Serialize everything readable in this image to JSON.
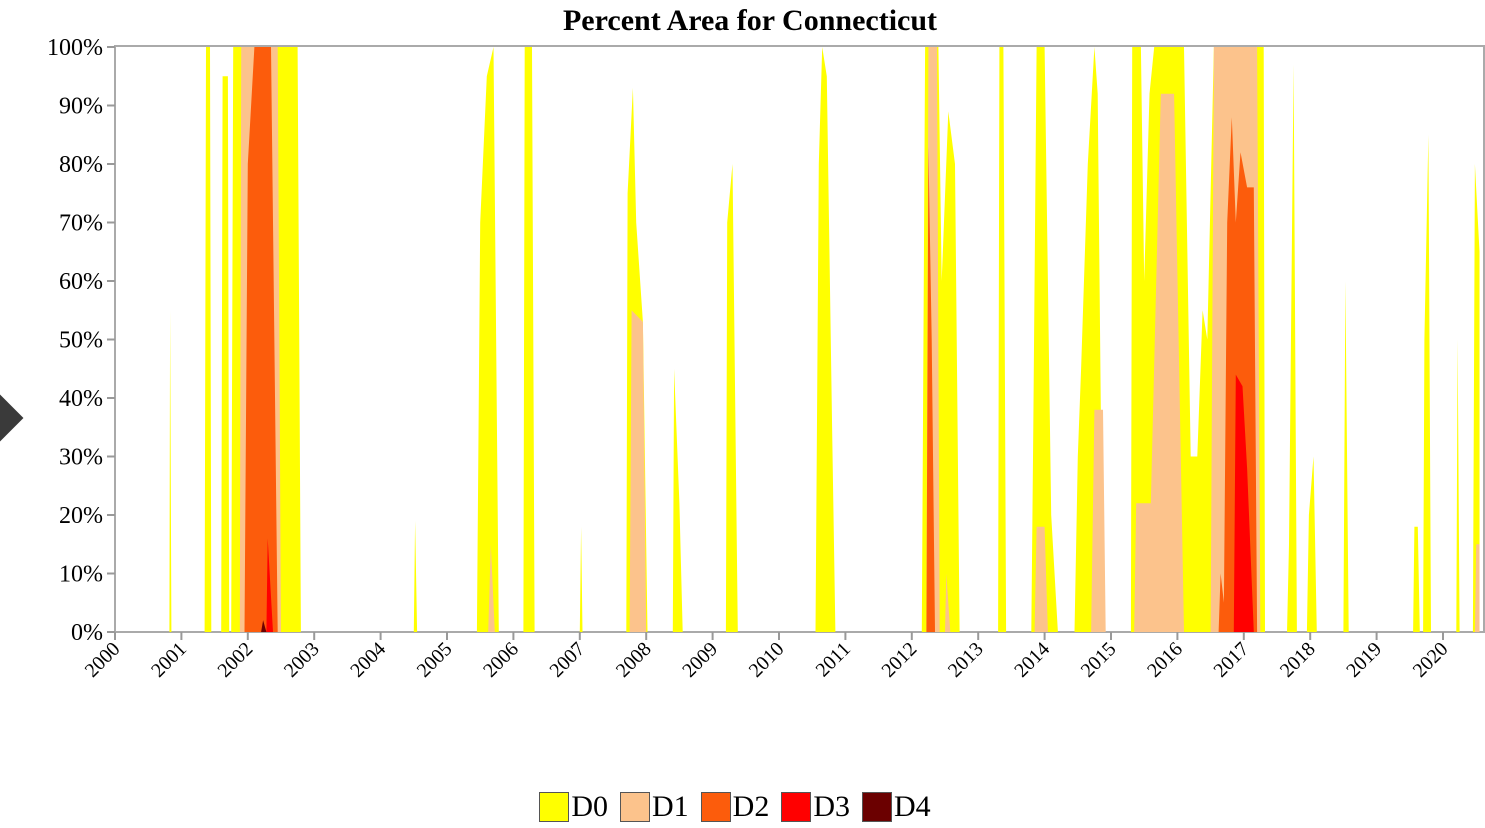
{
  "chart_data": {
    "type": "area",
    "title": "Percent Area for Connecticut",
    "xlabel": "",
    "ylabel": "",
    "x_start_year": 2000,
    "x_end_year": 2020.55,
    "ylim": [
      0,
      100
    ],
    "y_ticks": [
      "0%",
      "10%",
      "20%",
      "30%",
      "40%",
      "50%",
      "60%",
      "70%",
      "80%",
      "90%",
      "100%"
    ],
    "x_ticks": [
      "2000",
      "2001",
      "2002",
      "2003",
      "2004",
      "2005",
      "2006",
      "2007",
      "2008",
      "2009",
      "2010",
      "2011",
      "2012",
      "2013",
      "2014",
      "2015",
      "2016",
      "2017",
      "2018",
      "2019",
      "2020"
    ],
    "grid": false,
    "legend_position": "bottom-center",
    "series": [
      {
        "name": "D0",
        "color": "#ffff00",
        "points": [
          [
            2000.82,
            0
          ],
          [
            2000.83,
            55
          ],
          [
            2000.85,
            0
          ],
          [
            2001.35,
            0
          ],
          [
            2001.37,
            100
          ],
          [
            2001.43,
            100
          ],
          [
            2001.45,
            0
          ],
          [
            2001.6,
            0
          ],
          [
            2001.62,
            95
          ],
          [
            2001.7,
            95
          ],
          [
            2001.72,
            0
          ],
          [
            2001.75,
            0
          ],
          [
            2001.78,
            100
          ],
          [
            2002.75,
            100
          ],
          [
            2002.8,
            0
          ],
          [
            2004.5,
            0
          ],
          [
            2004.52,
            19
          ],
          [
            2004.55,
            0
          ],
          [
            2005.45,
            0
          ],
          [
            2005.5,
            70
          ],
          [
            2005.6,
            95
          ],
          [
            2005.7,
            100
          ],
          [
            2005.78,
            0
          ],
          [
            2006.15,
            0
          ],
          [
            2006.17,
            100
          ],
          [
            2006.28,
            100
          ],
          [
            2006.32,
            0
          ],
          [
            2007.0,
            0
          ],
          [
            2007.02,
            18
          ],
          [
            2007.04,
            0
          ],
          [
            2007.7,
            0
          ],
          [
            2007.72,
            75
          ],
          [
            2007.8,
            93
          ],
          [
            2007.85,
            70
          ],
          [
            2007.95,
            53
          ],
          [
            2008.02,
            0
          ],
          [
            2008.4,
            0
          ],
          [
            2008.42,
            45
          ],
          [
            2008.5,
            22
          ],
          [
            2008.55,
            0
          ],
          [
            2009.2,
            0
          ],
          [
            2009.22,
            70
          ],
          [
            2009.3,
            80
          ],
          [
            2009.38,
            0
          ],
          [
            2010.55,
            0
          ],
          [
            2010.6,
            80
          ],
          [
            2010.65,
            100
          ],
          [
            2010.72,
            95
          ],
          [
            2010.8,
            35
          ],
          [
            2010.85,
            0
          ],
          [
            2012.15,
            0
          ],
          [
            2012.2,
            100
          ],
          [
            2012.4,
            100
          ],
          [
            2012.45,
            60
          ],
          [
            2012.55,
            89
          ],
          [
            2012.65,
            80
          ],
          [
            2012.72,
            0
          ],
          [
            2013.3,
            0
          ],
          [
            2013.32,
            100
          ],
          [
            2013.38,
            100
          ],
          [
            2013.42,
            0
          ],
          [
            2013.8,
            0
          ],
          [
            2013.83,
            35
          ],
          [
            2013.88,
            100
          ],
          [
            2014.0,
            100
          ],
          [
            2014.05,
            60
          ],
          [
            2014.1,
            20
          ],
          [
            2014.2,
            0
          ],
          [
            2014.45,
            0
          ],
          [
            2014.5,
            30
          ],
          [
            2014.55,
            45
          ],
          [
            2014.65,
            80
          ],
          [
            2014.75,
            100
          ],
          [
            2014.8,
            92
          ],
          [
            2014.88,
            0
          ],
          [
            2015.3,
            0
          ],
          [
            2015.32,
            100
          ],
          [
            2015.45,
            100
          ],
          [
            2015.5,
            60
          ],
          [
            2015.58,
            92
          ],
          [
            2015.65,
            100
          ],
          [
            2016.1,
            100
          ],
          [
            2016.2,
            30
          ],
          [
            2016.3,
            30
          ],
          [
            2016.38,
            55
          ],
          [
            2016.45,
            50
          ],
          [
            2016.55,
            100
          ],
          [
            2017.3,
            100
          ],
          [
            2017.32,
            0
          ],
          [
            2017.65,
            0
          ],
          [
            2017.68,
            15
          ],
          [
            2017.75,
            97
          ],
          [
            2017.8,
            0
          ],
          [
            2017.95,
            0
          ],
          [
            2017.98,
            20
          ],
          [
            2018.05,
            30
          ],
          [
            2018.1,
            0
          ],
          [
            2018.5,
            0
          ],
          [
            2018.53,
            60
          ],
          [
            2018.58,
            0
          ],
          [
            2019.55,
            0
          ],
          [
            2019.57,
            18
          ],
          [
            2019.62,
            18
          ],
          [
            2019.65,
            0
          ],
          [
            2019.7,
            0
          ],
          [
            2019.72,
            50
          ],
          [
            2019.78,
            85
          ],
          [
            2019.82,
            0
          ],
          [
            2020.2,
            0
          ],
          [
            2020.22,
            50
          ],
          [
            2020.25,
            0
          ],
          [
            2020.45,
            0
          ],
          [
            2020.48,
            80
          ],
          [
            2020.55,
            65
          ]
        ]
      },
      {
        "name": "D1",
        "color": "#fcc38c",
        "points": [
          [
            2001.88,
            0
          ],
          [
            2001.9,
            100
          ],
          [
            2002.45,
            100
          ],
          [
            2002.5,
            0
          ],
          [
            2005.62,
            0
          ],
          [
            2005.66,
            15
          ],
          [
            2005.72,
            0
          ],
          [
            2007.75,
            0
          ],
          [
            2007.78,
            55
          ],
          [
            2007.95,
            53
          ],
          [
            2008.0,
            0
          ],
          [
            2012.22,
            0
          ],
          [
            2012.25,
            100
          ],
          [
            2012.38,
            100
          ],
          [
            2012.42,
            0
          ],
          [
            2012.5,
            0
          ],
          [
            2012.52,
            10
          ],
          [
            2012.58,
            0
          ],
          [
            2013.85,
            0
          ],
          [
            2013.88,
            18
          ],
          [
            2014.0,
            18
          ],
          [
            2014.05,
            0
          ],
          [
            2014.7,
            0
          ],
          [
            2014.75,
            38
          ],
          [
            2014.88,
            38
          ],
          [
            2014.92,
            0
          ],
          [
            2015.35,
            0
          ],
          [
            2015.38,
            22
          ],
          [
            2015.6,
            22
          ],
          [
            2015.75,
            92
          ],
          [
            2015.95,
            92
          ],
          [
            2016.1,
            0
          ],
          [
            2016.5,
            0
          ],
          [
            2016.55,
            100
          ],
          [
            2017.2,
            100
          ],
          [
            2017.25,
            0
          ],
          [
            2020.48,
            0
          ],
          [
            2020.5,
            15
          ],
          [
            2020.55,
            15
          ]
        ]
      },
      {
        "name": "D2",
        "color": "#fc5c0c",
        "points": [
          [
            2001.95,
            0
          ],
          [
            2002.0,
            80
          ],
          [
            2002.1,
            100
          ],
          [
            2002.35,
            100
          ],
          [
            2002.45,
            0
          ],
          [
            2012.22,
            0
          ],
          [
            2012.25,
            83
          ],
          [
            2012.3,
            50
          ],
          [
            2012.35,
            0
          ],
          [
            2016.62,
            0
          ],
          [
            2016.65,
            10
          ],
          [
            2016.7,
            5
          ],
          [
            2016.75,
            70
          ],
          [
            2016.82,
            88
          ],
          [
            2016.88,
            70
          ],
          [
            2016.95,
            82
          ],
          [
            2017.05,
            76
          ],
          [
            2017.15,
            76
          ],
          [
            2017.2,
            0
          ]
        ]
      },
      {
        "name": "D3",
        "color": "#ff0000",
        "points": [
          [
            2002.28,
            0
          ],
          [
            2002.3,
            16
          ],
          [
            2002.38,
            0
          ],
          [
            2016.85,
            0
          ],
          [
            2016.88,
            44
          ],
          [
            2016.98,
            42
          ],
          [
            2017.05,
            28
          ],
          [
            2017.15,
            0
          ]
        ]
      },
      {
        "name": "D4",
        "color": "#6b0000",
        "points": [
          [
            2002.2,
            0
          ],
          [
            2002.23,
            2
          ],
          [
            2002.28,
            0
          ]
        ]
      }
    ]
  }
}
